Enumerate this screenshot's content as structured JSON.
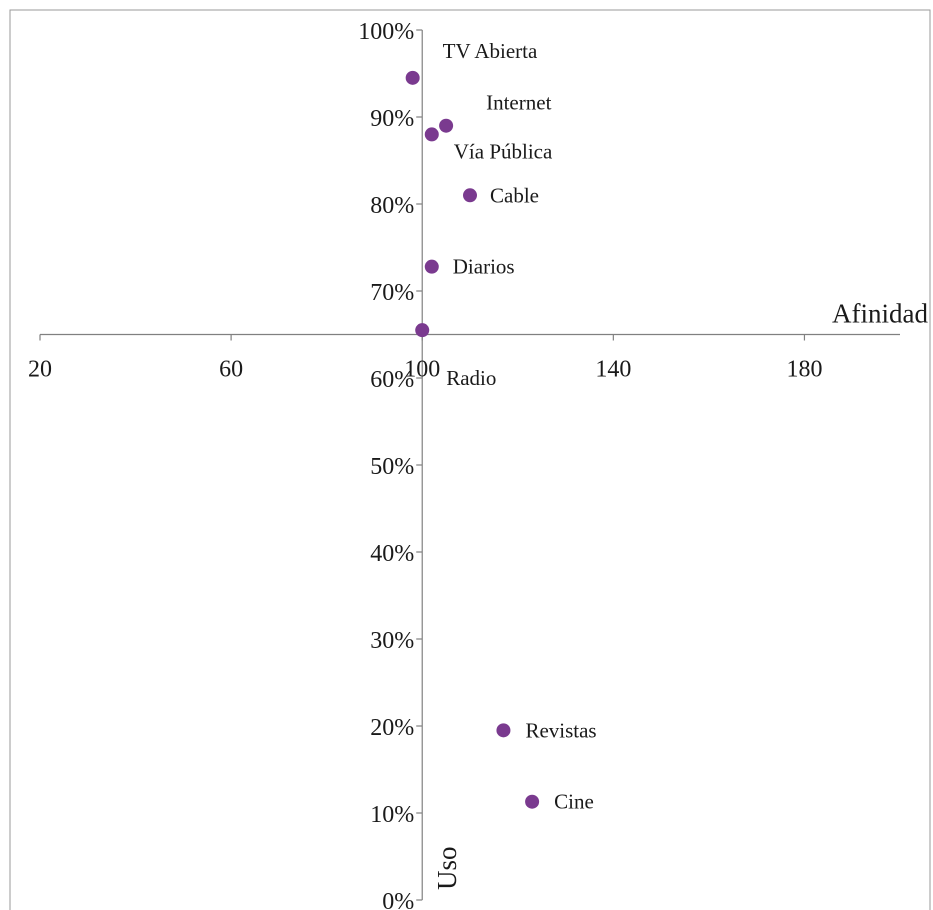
{
  "chart_data": {
    "type": "scatter",
    "title": "",
    "xlabel": "Afinidad",
    "ylabel": "Uso",
    "x_ticks": [
      20,
      60,
      100,
      140,
      180
    ],
    "y_ticks": [
      "0%",
      "10%",
      "20%",
      "30%",
      "40%",
      "50%",
      "60%",
      "70%",
      "80%",
      "90%",
      "100%"
    ],
    "xlim": [
      20,
      200
    ],
    "ylim": [
      0,
      100
    ],
    "x_axis_crosses_y_at": 65,
    "y_axis_crosses_x_at": 100,
    "grid": false,
    "marker_color": "#7a3a8f",
    "points": [
      {
        "label": "TV Abierta",
        "x": 98,
        "y": 94.5
      },
      {
        "label": "Internet",
        "x": 105,
        "y": 89
      },
      {
        "label": "Vía Pública",
        "x": 102,
        "y": 88
      },
      {
        "label": "Cable",
        "x": 110,
        "y": 81
      },
      {
        "label": "Diarios",
        "x": 102,
        "y": 72.8
      },
      {
        "label": "Radio",
        "x": 100,
        "y": 65.5
      },
      {
        "label": "Revistas",
        "x": 117,
        "y": 19.5
      },
      {
        "label": "Cine",
        "x": 123,
        "y": 11.3
      }
    ]
  }
}
